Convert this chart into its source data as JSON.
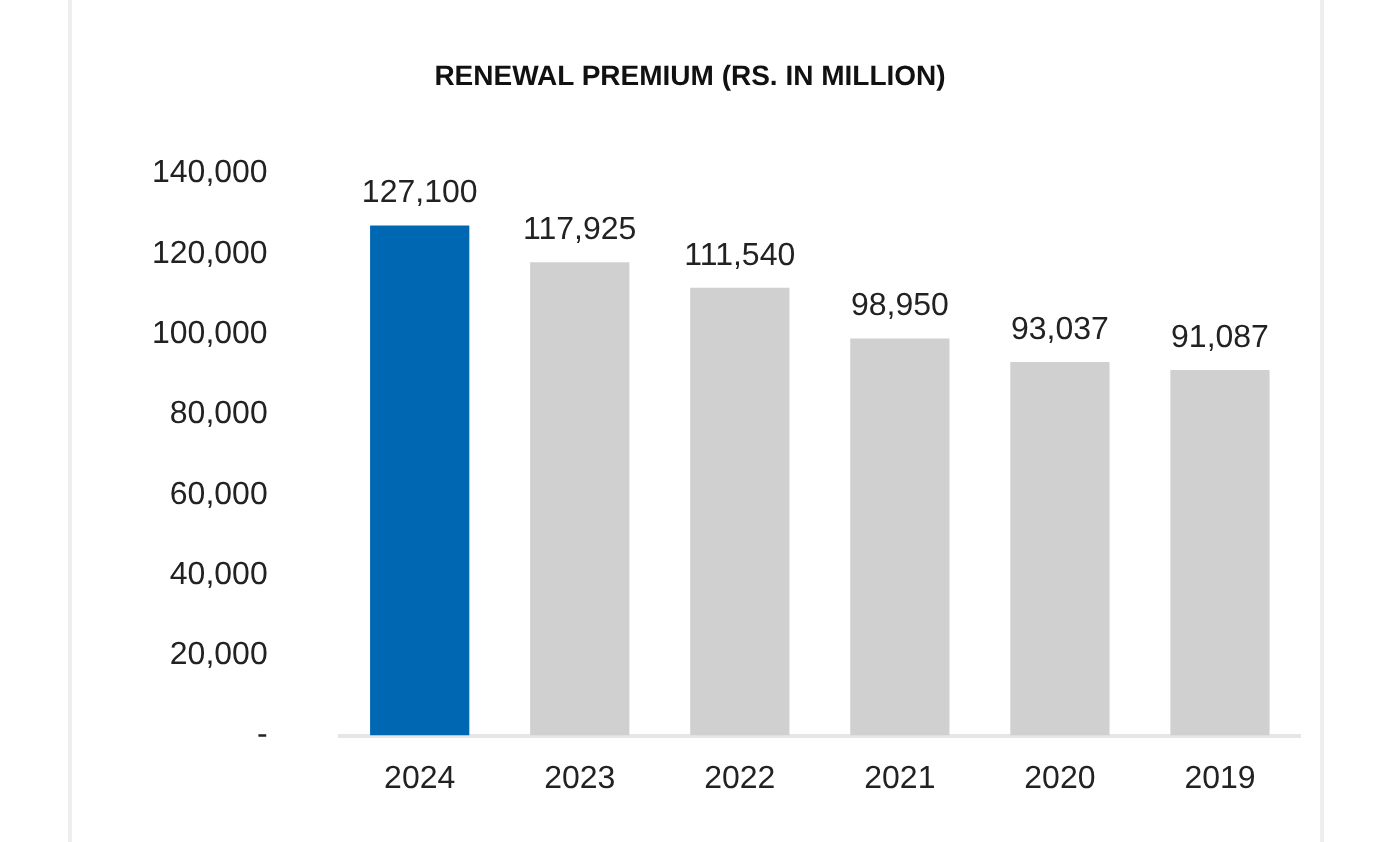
{
  "chart_data": {
    "type": "bar",
    "title": "RENEWAL PREMIUM (RS. IN MILLION)",
    "categories": [
      "2024",
      "2023",
      "2022",
      "2021",
      "2020",
      "2019"
    ],
    "values": [
      127100,
      117925,
      111540,
      98950,
      93037,
      91087
    ],
    "colors": [
      "#0068b3",
      "#d0d0d0",
      "#d0d0d0",
      "#d0d0d0",
      "#d0d0d0",
      "#d0d0d0"
    ],
    "value_labels": [
      "127,100",
      "117,925",
      "111,540",
      "98,950",
      "93,037",
      "91,087"
    ],
    "ylim": [
      0,
      140000
    ],
    "yticks": [
      {
        "value": 0,
        "label": "-"
      },
      {
        "value": 20000,
        "label": "20,000"
      },
      {
        "value": 40000,
        "label": "40,000"
      },
      {
        "value": 60000,
        "label": "60,000"
      },
      {
        "value": 80000,
        "label": "80,000"
      },
      {
        "value": 100000,
        "label": "100,000"
      },
      {
        "value": 120000,
        "label": "120,000"
      },
      {
        "value": 140000,
        "label": "140,000"
      }
    ],
    "grid": false,
    "legend": false
  }
}
